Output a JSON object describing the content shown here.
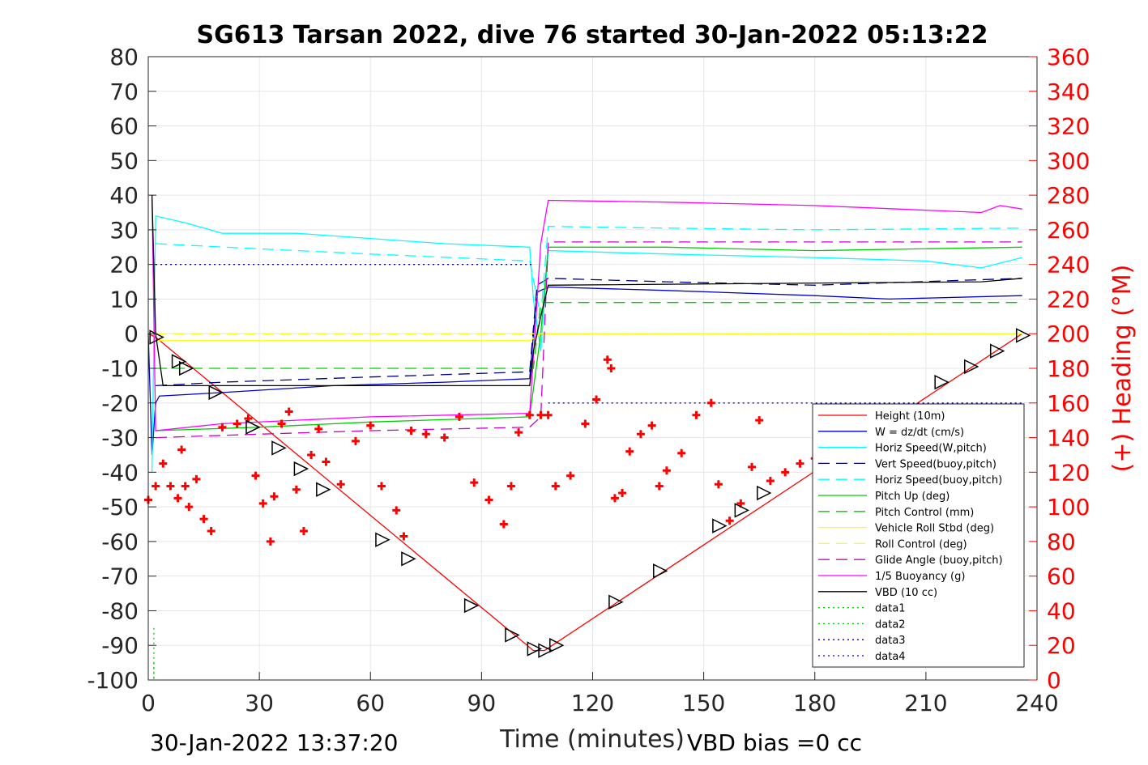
{
  "chart_data": {
    "type": "line",
    "title": "SG613 Tarsan 2022, dive 76 started 30-Jan-2022 05:13:22",
    "xlabel": "Time (minutes)",
    "ylabel_right": "(+) Heading (°M)",
    "xlim": [
      0,
      240
    ],
    "ylim": [
      -100,
      80
    ],
    "ylim_right": [
      0,
      360
    ],
    "x_ticks": [
      "0",
      "30",
      "60",
      "90",
      "120",
      "150",
      "180",
      "210",
      "240"
    ],
    "y_ticks": [
      "80",
      "70",
      "60",
      "50",
      "40",
      "30",
      "20",
      "10",
      "0",
      "-10",
      "-20",
      "-30",
      "-40",
      "-50",
      "-60",
      "-70",
      "-80",
      "-90",
      "-100"
    ],
    "y_ticks_right": [
      "360",
      "340",
      "320",
      "300",
      "280",
      "260",
      "240",
      "220",
      "200",
      "180",
      "160",
      "140",
      "120",
      "100",
      "80",
      "60",
      "40",
      "20",
      "0"
    ],
    "grid": true,
    "legend_position": "bottom-right",
    "footer_left": "30-Jan-2022 13:37:20",
    "footer_right": "VBD bias =0 cc",
    "series": [
      {
        "name": "Height (10m)",
        "color": "#ff0000",
        "style": "solid",
        "x": [
          0,
          2,
          104,
          107,
          236
        ],
        "y": [
          0,
          -1,
          -91.5,
          -91.5,
          0
        ]
      },
      {
        "name": "W = dz/dt (cm/s)",
        "color": "#0000cd",
        "style": "solid",
        "x": [
          0,
          1,
          2,
          3,
          20,
          50,
          80,
          103,
          105,
          108,
          140,
          180,
          200,
          236
        ],
        "y": [
          0,
          -35,
          -20,
          -18,
          -17,
          -15,
          -14,
          -13,
          12,
          13.5,
          12.5,
          11,
          10,
          11
        ]
      },
      {
        "name": "Horiz Speed(W,pitch)",
        "color": "#00ffff",
        "style": "solid",
        "x": [
          1,
          2,
          10,
          20,
          40,
          60,
          80,
          103,
          104,
          106,
          108,
          140,
          180,
          210,
          225,
          236
        ],
        "y": [
          -40,
          34,
          32,
          29,
          29,
          27.5,
          26,
          25,
          10,
          -5,
          24,
          23,
          22,
          21,
          19,
          22
        ]
      },
      {
        "name": "Vert Speed(buoy,pitch)",
        "color": "#00008b",
        "style": "dashed",
        "x": [
          2,
          20,
          60,
          103,
          105,
          108,
          140,
          180,
          236
        ],
        "y": [
          -15,
          -14,
          -12.5,
          -11,
          14,
          16,
          15,
          14,
          16
        ]
      },
      {
        "name": "Horiz Speed(buoy,pitch)",
        "color": "#00ffff",
        "style": "dashed",
        "x": [
          2,
          30,
          60,
          103,
          106,
          108,
          140,
          180,
          236
        ],
        "y": [
          26,
          24.5,
          23,
          21,
          5,
          31,
          30.5,
          30,
          30.5
        ]
      },
      {
        "name": "Pitch Up (deg)",
        "color": "#00cc00",
        "style": "solid",
        "x": [
          2,
          30,
          60,
          103,
          106,
          108,
          140,
          180,
          236
        ],
        "y": [
          -28,
          -27,
          -25.5,
          -24,
          0,
          25,
          25,
          24,
          25
        ]
      },
      {
        "name": "Pitch Control (mm)",
        "color": "#00cc00",
        "style": "dashed",
        "x": [
          2,
          104,
          106,
          236
        ],
        "y": [
          -10,
          -10,
          9,
          9
        ]
      },
      {
        "name": "Vehicle Roll Stbd (deg)",
        "color": "#ffff00",
        "style": "solid",
        "x": [
          2,
          30,
          60,
          103,
          106,
          140,
          180,
          236
        ],
        "y": [
          -2,
          -2,
          -2,
          -2,
          0,
          0,
          0,
          0
        ]
      },
      {
        "name": "Roll Control (deg)",
        "color": "#ffff00",
        "style": "dashed",
        "x": [
          2,
          104,
          106,
          236
        ],
        "y": [
          0,
          0,
          0,
          0
        ]
      },
      {
        "name": "Glide Angle (buoy,pitch)",
        "color": "#cc00cc",
        "style": "dashed",
        "x": [
          2,
          30,
          60,
          103,
          106,
          108,
          140,
          180,
          236
        ],
        "y": [
          -30,
          -29,
          -28,
          -27,
          -24,
          26.5,
          26.5,
          26.5,
          26.5
        ]
      },
      {
        "name": "1/5 Buoyancy (g)",
        "color": "#ff00ff",
        "style": "solid",
        "x": [
          1,
          2,
          20,
          60,
          103,
          106,
          108,
          140,
          180,
          225,
          230,
          236
        ],
        "y": [
          40,
          -28,
          -26,
          -24,
          -23,
          26,
          38.5,
          38,
          37,
          35,
          37,
          36
        ]
      },
      {
        "name": "VBD (10 cc)",
        "color": "#000000",
        "style": "solid",
        "x": [
          1,
          2,
          4,
          103,
          104,
          106,
          108,
          225,
          236
        ],
        "y": [
          40,
          0,
          -15,
          -15,
          -5,
          5,
          14,
          15,
          16
        ]
      },
      {
        "name": "data1",
        "color": "#00cc00",
        "style": "dotted",
        "x": [
          1.5,
          1.5
        ],
        "y": [
          -85,
          -100
        ]
      },
      {
        "name": "data2",
        "color": "#00cc00",
        "style": "dotted",
        "x": [
          1.5,
          1.5
        ],
        "y": [
          -95,
          -100
        ]
      },
      {
        "name": "data3",
        "color": "#00008b",
        "style": "dotted",
        "x": [
          2,
          104
        ],
        "y": [
          20,
          20
        ]
      },
      {
        "name": "data4",
        "color": "#0000ff",
        "style": "dotted",
        "x": [
          108,
          236
        ],
        "y": [
          -20,
          -20
        ]
      },
      {
        "name": "Heading",
        "color": "#ff0000",
        "style": "markers",
        "axis": "right",
        "x": [
          0,
          2,
          4,
          6,
          8,
          9,
          10,
          11,
          13,
          15,
          17,
          20,
          24,
          27,
          29,
          31,
          33,
          34,
          36,
          38,
          40,
          42,
          44,
          46,
          48,
          52,
          56,
          60,
          63,
          67,
          69,
          71,
          75,
          80,
          84,
          88,
          92,
          96,
          98,
          100,
          103,
          106,
          108,
          110,
          114,
          118,
          121,
          124,
          125,
          126,
          128,
          130,
          133,
          136,
          138,
          140,
          144,
          148,
          152,
          154,
          157,
          160,
          163,
          165,
          168,
          172,
          176,
          180,
          185
        ],
        "y": [
          104,
          112,
          125,
          112,
          105,
          133,
          112,
          100,
          116,
          93,
          86,
          146,
          148,
          151,
          118,
          102,
          80,
          106,
          148,
          155,
          110,
          86,
          130,
          145,
          126,
          113,
          138,
          147,
          112,
          98,
          83,
          144,
          142,
          140,
          152,
          114,
          104,
          90,
          112,
          143,
          153,
          153,
          153,
          112,
          118,
          148,
          162,
          185,
          180,
          105,
          108,
          132,
          142,
          147,
          112,
          121,
          131,
          153,
          160,
          113,
          92,
          102,
          123,
          150,
          115,
          120,
          125,
          128,
          125
        ]
      },
      {
        "name": "Height markers",
        "color": "#000000",
        "style": "triangles",
        "x": [
          2,
          8,
          10,
          18,
          28,
          35,
          41,
          47,
          63,
          70,
          87,
          98,
          104,
          107,
          110,
          126,
          138,
          154,
          160,
          166,
          214,
          222,
          229,
          236
        ],
        "y": [
          -1,
          -8,
          -10,
          -17,
          -27,
          -33,
          -39,
          -45,
          -59.5,
          -65,
          -78.5,
          -87,
          -91,
          -91.5,
          -90,
          -77.5,
          -68.5,
          -55.5,
          -51,
          -46,
          -14,
          -9.5,
          -5,
          -0.5
        ]
      }
    ]
  }
}
